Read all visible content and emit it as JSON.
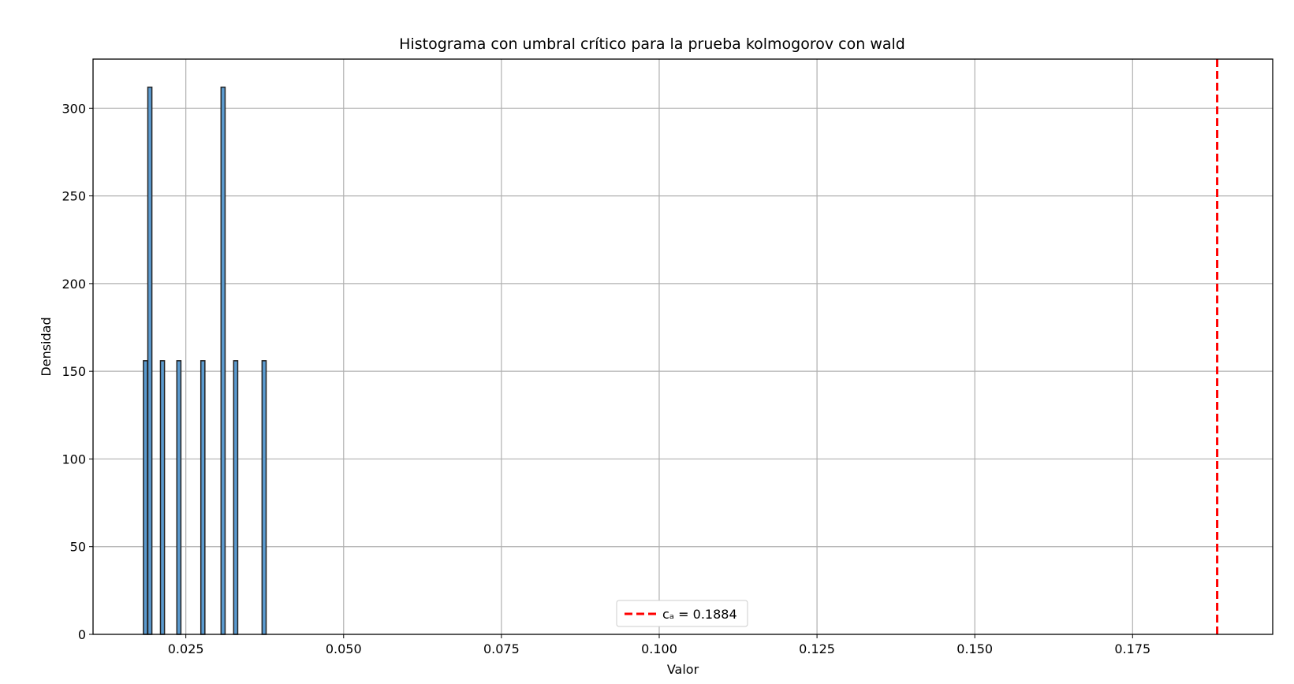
{
  "chart_data": {
    "type": "bar",
    "title": "Histograma con umbral crítico para la prueba kolmogorov con  wald",
    "xlabel": "Valor",
    "ylabel": "Densidad",
    "xlim": [
      0.0103,
      0.1972
    ],
    "ylim": [
      0,
      328
    ],
    "xticks": [
      0.025,
      0.05,
      0.075,
      0.1,
      0.125,
      0.15,
      0.175
    ],
    "xtick_labels": [
      "0.025",
      "0.050",
      "0.075",
      "0.100",
      "0.125",
      "0.150",
      "0.175"
    ],
    "yticks": [
      0,
      50,
      100,
      150,
      200,
      250,
      300
    ],
    "ytick_labels": [
      "0",
      "50",
      "100",
      "150",
      "200",
      "250",
      "300"
    ],
    "grid": true,
    "bar_width": 0.00064,
    "bars": [
      {
        "x": 0.0186,
        "value": 156
      },
      {
        "x": 0.0193,
        "value": 312
      },
      {
        "x": 0.0213,
        "value": 156
      },
      {
        "x": 0.0239,
        "value": 156
      },
      {
        "x": 0.0277,
        "value": 156
      },
      {
        "x": 0.0309,
        "value": 312
      },
      {
        "x": 0.0329,
        "value": 156
      },
      {
        "x": 0.0374,
        "value": 156
      }
    ],
    "threshold": {
      "x": 0.1884,
      "label": "cₐ = 0.1884",
      "color": "#ff0000"
    },
    "bar_color": "#5b9bd0",
    "bar_edge_color": "#222222",
    "grid_color": "#b0b0b0",
    "legend_position": "lower center"
  }
}
